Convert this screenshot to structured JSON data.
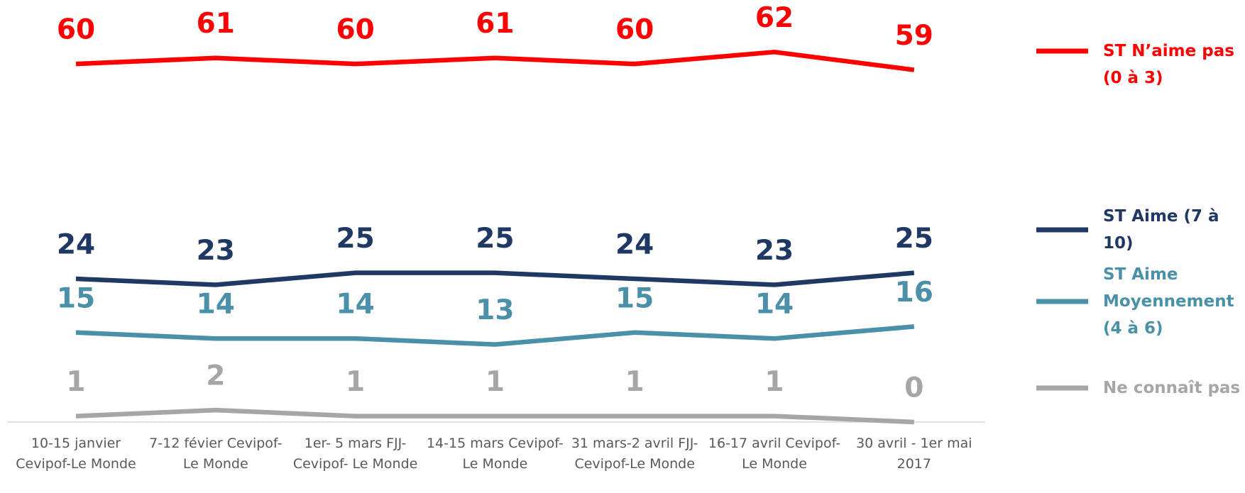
{
  "chart_data": {
    "type": "line",
    "categories": [
      "10-15 janvier Cevipof-Le Monde",
      "7-12 févier Cevipof-Le Monde",
      "1er- 5 mars FJJ-Cevipof- Le Monde",
      "14-15 mars Cevipof-Le Monde",
      "31 mars-2 avril FJJ-Cevipof-Le Monde",
      "16-17 avril Cevipof-Le Monde",
      "30 avril - 1er mai 2017"
    ],
    "series": [
      {
        "name": "ST N’aime pas (0 à 3)",
        "color": "#ff0000",
        "values": [
          60,
          61,
          60,
          61,
          60,
          62,
          59
        ]
      },
      {
        "name": "ST Aime (7 à 10)",
        "color": "#1f3864",
        "values": [
          24,
          23,
          25,
          25,
          24,
          23,
          25
        ]
      },
      {
        "name": "ST Aime Moyennement (4 à 6)",
        "color": "#4a90a8",
        "values": [
          15,
          14,
          14,
          13,
          15,
          14,
          16
        ]
      },
      {
        "name": "Ne connaît pas",
        "color": "#a6a6a6",
        "values": [
          1,
          2,
          1,
          1,
          1,
          1,
          0
        ]
      }
    ],
    "ylim": [
      0,
      70
    ],
    "legend": "right"
  }
}
